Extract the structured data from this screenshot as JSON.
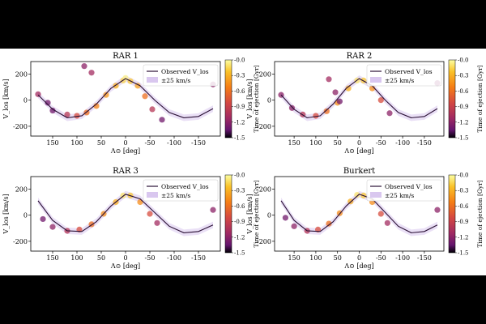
{
  "chart_data": [
    {
      "type": "scatter",
      "title": "RAR 1",
      "xlabel": "Λ⊙ [deg]",
      "ylabel": "V_los [km/s]",
      "xlim": [
        195,
        -195
      ],
      "ylim": [
        -275,
        295
      ],
      "xticks": [
        150,
        100,
        50,
        0,
        -50,
        -100,
        -150
      ],
      "yticks": [
        200,
        0,
        -200
      ],
      "legend": [
        "Observed V_los",
        "±25 km/s"
      ],
      "colorbar": {
        "label": "Time of ejection [Gyr]",
        "ticks": [
          "-0.0",
          "-0.3",
          "-0.6",
          "-0.9",
          "-1.2",
          "-1.5"
        ],
        "range": [
          0,
          -1.5
        ]
      },
      "observed_curve": {
        "x": [
          180,
          150,
          120,
          90,
          60,
          30,
          0,
          -30,
          -60,
          -90,
          -120,
          -150,
          -180
        ],
        "y": [
          40,
          -70,
          -135,
          -120,
          -30,
          90,
          165,
          110,
          0,
          -95,
          -135,
          -125,
          -65
        ]
      },
      "particles": [
        {
          "x": 180,
          "y": 45,
          "age": -1.1
        },
        {
          "x": 160,
          "y": -20,
          "age": -1.3
        },
        {
          "x": 150,
          "y": -80,
          "age": -1.3
        },
        {
          "x": 120,
          "y": -110,
          "age": -1.0
        },
        {
          "x": 100,
          "y": -120,
          "age": -0.8
        },
        {
          "x": 80,
          "y": -95,
          "age": -0.6
        },
        {
          "x": 60,
          "y": -45,
          "age": -0.5
        },
        {
          "x": 40,
          "y": 40,
          "age": -0.4
        },
        {
          "x": 20,
          "y": 110,
          "age": -0.3
        },
        {
          "x": 5,
          "y": 150,
          "age": -0.15
        },
        {
          "x": 0,
          "y": 170,
          "age": -0.05
        },
        {
          "x": -10,
          "y": 145,
          "age": -0.2
        },
        {
          "x": -25,
          "y": 110,
          "age": -0.35
        },
        {
          "x": -40,
          "y": 30,
          "age": -0.6
        },
        {
          "x": -55,
          "y": -70,
          "age": -1.0
        },
        {
          "x": -75,
          "y": -150,
          "age": -1.3
        },
        {
          "x": 85,
          "y": 260,
          "age": -1.2
        },
        {
          "x": 70,
          "y": 210,
          "age": -1.1
        },
        {
          "x": -180,
          "y": 120,
          "age": -1.2
        }
      ]
    },
    {
      "type": "scatter",
      "title": "RAR 2",
      "xlabel": "Λ⊙ [deg]",
      "ylabel": "V_los [km/s]",
      "xlim": [
        195,
        -195
      ],
      "ylim": [
        -275,
        295
      ],
      "xticks": [
        150,
        100,
        50,
        0,
        -50,
        -100,
        -150
      ],
      "yticks": [
        200,
        0,
        -200
      ],
      "legend": [
        "Observed V_los",
        "±25 km/s"
      ],
      "colorbar": {
        "label": "Time of ejection [Gyr]",
        "ticks": [
          "-0.0",
          "-0.3",
          "-0.6",
          "-0.9",
          "-1.2",
          "-1.5"
        ],
        "range": [
          0,
          -1.5
        ]
      },
      "observed_curve": {
        "x": [
          180,
          150,
          120,
          90,
          60,
          30,
          0,
          -30,
          -60,
          -90,
          -120,
          -150,
          -180
        ],
        "y": [
          40,
          -70,
          -135,
          -120,
          -30,
          90,
          165,
          110,
          0,
          -95,
          -135,
          -125,
          -65
        ]
      },
      "particles": [
        {
          "x": 180,
          "y": 40,
          "age": -1.2
        },
        {
          "x": 155,
          "y": -60,
          "age": -1.2
        },
        {
          "x": 130,
          "y": -110,
          "age": -1.0
        },
        {
          "x": 100,
          "y": -120,
          "age": -0.8
        },
        {
          "x": 75,
          "y": -85,
          "age": -0.6
        },
        {
          "x": 50,
          "y": -20,
          "age": -0.45
        },
        {
          "x": 25,
          "y": 90,
          "age": -0.3
        },
        {
          "x": 5,
          "y": 150,
          "age": -0.1
        },
        {
          "x": -10,
          "y": 150,
          "age": -0.2
        },
        {
          "x": -30,
          "y": 90,
          "age": -0.45
        },
        {
          "x": -50,
          "y": 0,
          "age": -0.8
        },
        {
          "x": -70,
          "y": -100,
          "age": -1.2
        },
        {
          "x": 70,
          "y": 160,
          "age": -1.1
        },
        {
          "x": 55,
          "y": 60,
          "age": -1.2
        },
        {
          "x": 45,
          "y": -10,
          "age": -1.3
        },
        {
          "x": -180,
          "y": 130,
          "age": -1.2
        }
      ]
    },
    {
      "type": "scatter",
      "title": "RAR 3",
      "xlabel": "Λ⊙ [deg]",
      "ylabel": "V_los [km/s]",
      "xlim": [
        195,
        -195
      ],
      "ylim": [
        -275,
        295
      ],
      "xticks": [
        150,
        100,
        50,
        0,
        -50,
        -100,
        -150
      ],
      "yticks": [
        200,
        0,
        -200
      ],
      "legend": [
        "Observed V_los",
        "±25 km/s"
      ],
      "colorbar": {
        "label": "Time of ejection [Gyr]",
        "ticks": [
          "-0.0",
          "-0.3",
          "-0.6",
          "-0.9",
          "-1.2",
          "-1.5"
        ],
        "range": [
          0,
          -1.5
        ]
      },
      "observed_curve": {
        "x": [
          180,
          150,
          120,
          90,
          60,
          30,
          0,
          -30,
          -60,
          -90,
          -120,
          -150,
          -180
        ],
        "y": [
          110,
          -40,
          -120,
          -125,
          -50,
          70,
          160,
          125,
          20,
          -85,
          -135,
          -125,
          -75
        ]
      },
      "particles": [
        {
          "x": 170,
          "y": -30,
          "age": -1.3
        },
        {
          "x": 150,
          "y": -90,
          "age": -1.2
        },
        {
          "x": 120,
          "y": -120,
          "age": -1.0
        },
        {
          "x": 95,
          "y": -110,
          "age": -0.8
        },
        {
          "x": 70,
          "y": -70,
          "age": -0.6
        },
        {
          "x": 45,
          "y": 10,
          "age": -0.45
        },
        {
          "x": 20,
          "y": 100,
          "age": -0.3
        },
        {
          "x": 5,
          "y": 150,
          "age": -0.1
        },
        {
          "x": -10,
          "y": 150,
          "age": -0.2
        },
        {
          "x": -30,
          "y": 100,
          "age": -0.45
        },
        {
          "x": -50,
          "y": 10,
          "age": -0.8
        },
        {
          "x": -65,
          "y": -60,
          "age": -1.1
        },
        {
          "x": -180,
          "y": 40,
          "age": -1.2
        }
      ]
    },
    {
      "type": "scatter",
      "title": "Burkert",
      "xlabel": "Λ⊙ [deg]",
      "ylabel": "V_los [km/s]",
      "xlim": [
        195,
        -195
      ],
      "ylim": [
        -275,
        295
      ],
      "xticks": [
        150,
        100,
        50,
        0,
        -50,
        -100,
        -150
      ],
      "yticks": [
        200,
        0,
        -200
      ],
      "legend": [
        "Observed V_los",
        "±25 km/s"
      ],
      "colorbar": {
        "label": "Time of ejection [Gyr]",
        "ticks": [
          "-0.0",
          "-0.3",
          "-0.6",
          "-0.9",
          "-1.2",
          "-1.5"
        ],
        "range": [
          0,
          -1.5
        ]
      },
      "observed_curve": {
        "x": [
          180,
          150,
          120,
          90,
          60,
          30,
          0,
          -30,
          -60,
          -90,
          -120,
          -150,
          -180
        ],
        "y": [
          110,
          -40,
          -120,
          -125,
          -50,
          70,
          160,
          125,
          20,
          -85,
          -135,
          -125,
          -75
        ]
      },
      "particles": [
        {
          "x": 170,
          "y": -20,
          "age": -1.3
        },
        {
          "x": 150,
          "y": -85,
          "age": -1.2
        },
        {
          "x": 120,
          "y": -120,
          "age": -1.0
        },
        {
          "x": 95,
          "y": -110,
          "age": -0.8
        },
        {
          "x": 70,
          "y": -65,
          "age": -0.6
        },
        {
          "x": 45,
          "y": 15,
          "age": -0.45
        },
        {
          "x": 20,
          "y": 105,
          "age": -0.3
        },
        {
          "x": 5,
          "y": 155,
          "age": -0.1
        },
        {
          "x": -10,
          "y": 150,
          "age": -0.2
        },
        {
          "x": -30,
          "y": 100,
          "age": -0.45
        },
        {
          "x": -50,
          "y": 10,
          "age": -0.8
        },
        {
          "x": -65,
          "y": -60,
          "age": -1.1
        },
        {
          "x": -180,
          "y": 40,
          "age": -1.2
        }
      ]
    }
  ]
}
